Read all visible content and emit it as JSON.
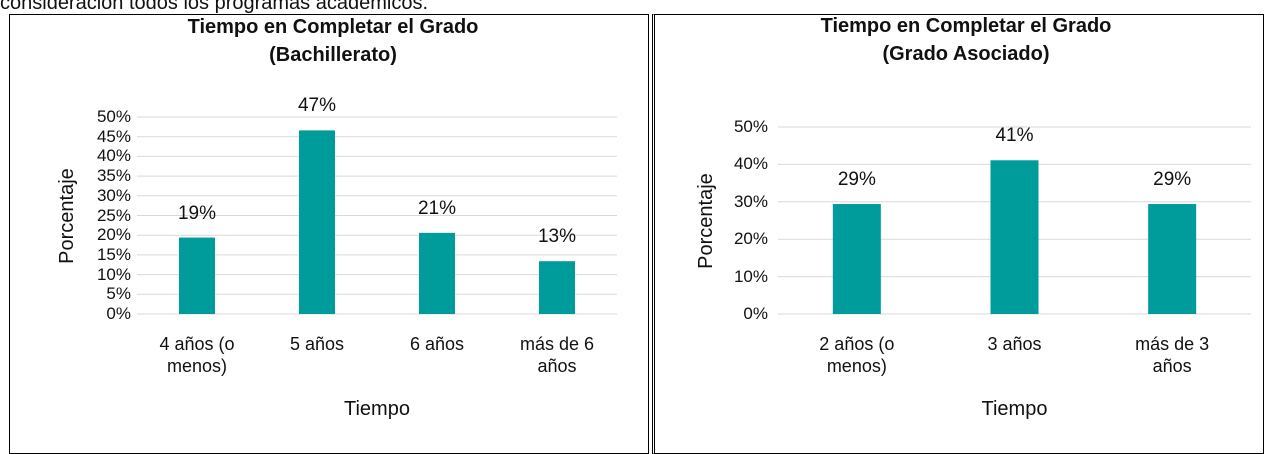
{
  "page_text": "consideración todos los programas académicos.",
  "chart_data": [
    {
      "type": "bar",
      "title": "Tiempo en Completar el Grado (Bachillerato)",
      "categories": [
        "4 años (o menos)",
        "5 años",
        "6 años",
        "más de 6 años"
      ],
      "values": [
        19.4,
        46.6,
        20.6,
        13.4
      ],
      "value_labels": [
        "19%",
        "47%",
        "21%",
        "13%"
      ],
      "color": "#009c9c",
      "x_label": "Tiempo",
      "y_label": "Porcentaje",
      "ylim": [
        0,
        50
      ],
      "yticks": [
        {
          "value": 0,
          "label": "0%"
        },
        {
          "value": 5,
          "label": "5%"
        },
        {
          "value": 10,
          "label": "10%"
        },
        {
          "value": 15,
          "label": "15%"
        },
        {
          "value": 20,
          "label": "20%"
        },
        {
          "value": 25,
          "label": "25%"
        },
        {
          "value": 30,
          "label": "30%"
        },
        {
          "value": 35,
          "label": "35%"
        },
        {
          "value": 40,
          "label": "40%"
        },
        {
          "value": 45,
          "label": "45%"
        },
        {
          "value": 50,
          "label": "50%"
        }
      ],
      "grid": true
    },
    {
      "type": "bar",
      "title": "Tiempo en Completar el Grado (Grado Asociado)",
      "categories": [
        "2 años (o menos)",
        "3 años",
        "más de 3 años"
      ],
      "values": [
        29.4,
        41.1,
        29.4
      ],
      "value_labels": [
        "29%",
        "41%",
        "29%"
      ],
      "color": "#009c9c",
      "x_label": "Tiempo",
      "y_label": "Porcentaje",
      "ylim": [
        0,
        50
      ],
      "yticks": [
        {
          "value": 0,
          "label": "0%"
        },
        {
          "value": 10,
          "label": "10%"
        },
        {
          "value": 20,
          "label": "20%"
        },
        {
          "value": 30,
          "label": "30%"
        },
        {
          "value": 40,
          "label": "40%"
        },
        {
          "value": 50,
          "label": "50%"
        }
      ],
      "grid": true
    }
  ]
}
